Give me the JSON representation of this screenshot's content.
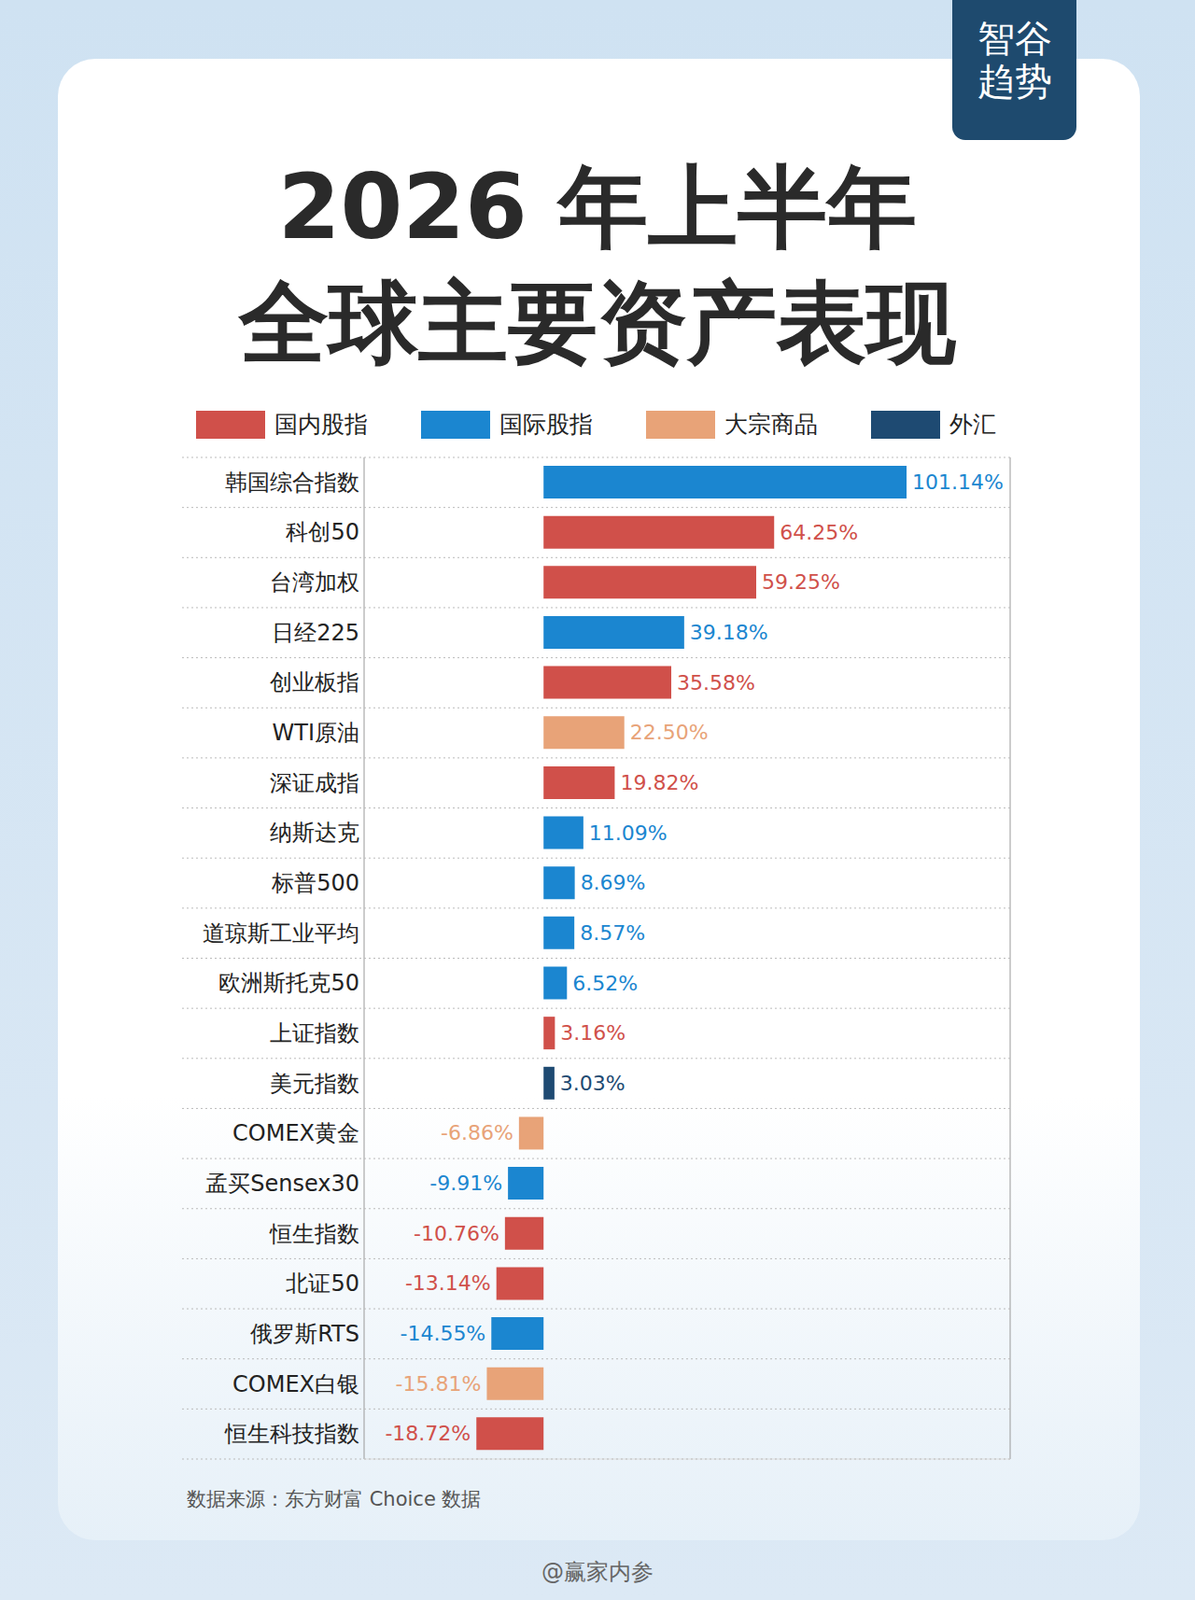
{
  "brand": "智谷趋势",
  "source": "数据来源：东方财富 Choice 数据",
  "watermark": "@赢家内参",
  "chart_data": {
    "type": "bar",
    "title": "2026 年上半年",
    "subtitle": "全球主要资产表现",
    "orientation": "horizontal",
    "data_labels": true,
    "tick_labels": "y",
    "grid": true,
    "legend": "top",
    "xlim": [
      -50,
      130
    ],
    "xticks": [
      0
    ],
    "groups": [
      {
        "name": "国内股指",
        "color": "#d0504a"
      },
      {
        "name": "国际股指",
        "color": "#1b86d0"
      },
      {
        "name": "大宗商品",
        "color": "#e8a378"
      },
      {
        "name": "外汇",
        "color": "#1e4a72"
      }
    ],
    "categories": [
      "韩国综合指数",
      "科创50",
      "台湾加权",
      "日经225",
      "创业板指",
      "WTI原油",
      "深证成指",
      "纳斯达克",
      "标普500",
      "道琼斯工业平均",
      "欧洲斯托克50",
      "上证指数",
      "美元指数",
      "COMEX黄金",
      "孟买Sensex30",
      "恒生指数",
      "北证50",
      "俄罗斯RTS",
      "COMEX白银",
      "恒生科技指数"
    ],
    "values": [
      101.14,
      64.25,
      59.25,
      39.18,
      35.58,
      22.5,
      19.82,
      11.09,
      8.69,
      8.57,
      6.52,
      3.16,
      3.03,
      -6.86,
      -9.91,
      -10.76,
      -13.14,
      -14.55,
      -15.81,
      -18.72
    ],
    "value_labels": [
      "101.14%",
      "64.25%",
      "59.25%",
      "39.18%",
      "35.58%",
      "22.50%",
      "19.82%",
      "11.09%",
      "8.69%",
      "8.57%",
      "6.52%",
      "3.16%",
      "3.03%",
      "-6.86%",
      "-9.91%",
      "-10.76%",
      "-13.14%",
      "-14.55%",
      "-15.81%",
      "-18.72%"
    ],
    "colors": [
      "#1b86d0",
      "#d0504a",
      "#d0504a",
      "#1b86d0",
      "#d0504a",
      "#e8a378",
      "#d0504a",
      "#1b86d0",
      "#1b86d0",
      "#1b86d0",
      "#1b86d0",
      "#d0504a",
      "#1e4a72",
      "#e8a378",
      "#1b86d0",
      "#d0504a",
      "#d0504a",
      "#1b86d0",
      "#e8a378",
      "#d0504a"
    ]
  }
}
